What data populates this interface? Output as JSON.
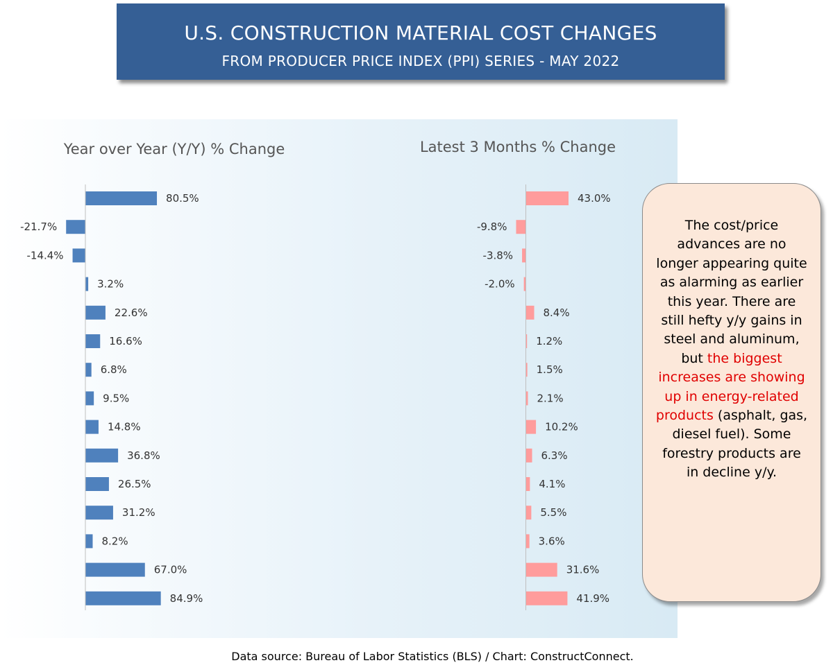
{
  "header": {
    "title": "U.S. CONSTRUCTION MATERIAL COST CHANGES",
    "subtitle": "FROM PRODUCER PRICE INDEX (PPI) SERIES - MAY 2022"
  },
  "chart_data": [
    {
      "type": "bar",
      "orientation": "horizontal",
      "title": "Year over Year (Y/Y) % Change",
      "categories": [],
      "values": [
        80.5,
        -21.7,
        -14.4,
        3.2,
        22.6,
        16.6,
        6.8,
        9.5,
        14.8,
        36.8,
        26.5,
        31.2,
        8.2,
        67.0,
        84.9
      ],
      "labels": [
        "80.5%",
        "-21.7%",
        "-14.4%",
        "3.2%",
        "22.6%",
        "16.6%",
        "6.8%",
        "9.5%",
        "14.8%",
        "36.8%",
        "26.5%",
        "31.2%",
        "8.2%",
        "67.0%",
        "84.9%"
      ],
      "color": "#4f81bd",
      "xlim": [
        -40,
        100
      ],
      "grid": false
    },
    {
      "type": "bar",
      "orientation": "horizontal",
      "title": "Latest 3 Months % Change",
      "categories": [],
      "values": [
        43.0,
        -9.8,
        -3.8,
        -2.0,
        8.4,
        1.2,
        1.5,
        2.1,
        10.2,
        6.3,
        4.1,
        5.5,
        3.6,
        31.6,
        41.9
      ],
      "labels": [
        "43.0%",
        "-9.8%",
        "-3.8%",
        "-2.0%",
        "8.4%",
        "1.2%",
        "1.5%",
        "2.1%",
        "10.2%",
        "6.3%",
        "4.1%",
        "5.5%",
        "3.6%",
        "31.6%",
        "41.9%"
      ],
      "color": "#ff9c9c",
      "xlim": [
        -20,
        50
      ],
      "grid": false
    }
  ],
  "callout": {
    "text_before": "The cost/price advances are no longer appearing quite as alarming as earlier this year. There are still hefty y/y gains in steel and aluminum, but ",
    "highlight": "the biggest increases are showing up in energy-related products",
    "text_after": " (asphalt, gas, diesel fuel). Some forestry products are in decline y/y.",
    "highlight_color": "#e00000"
  },
  "footer": {
    "source": "Data source: Bureau of Labor Statistics (BLS) / Chart: ConstructConnect."
  }
}
